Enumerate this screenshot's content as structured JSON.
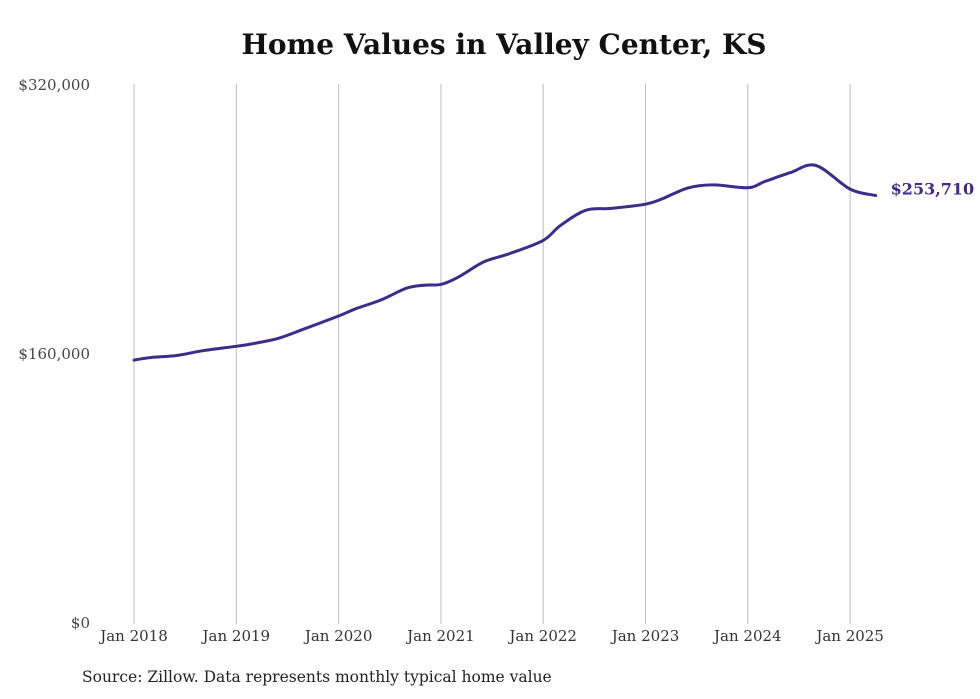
{
  "chart_data": {
    "type": "line",
    "title": "Home Values in Valley Center, KS",
    "xlabel": "",
    "ylabel": "",
    "ylim": [
      0,
      320000
    ],
    "yticks": [
      {
        "value": 0,
        "label": "$0"
      },
      {
        "value": 160000,
        "label": "$160,000"
      },
      {
        "value": 320000,
        "label": "$320,000"
      }
    ],
    "xticks": [
      {
        "value": "2018-01",
        "label": "Jan 2018"
      },
      {
        "value": "2019-01",
        "label": "Jan 2019"
      },
      {
        "value": "2020-01",
        "label": "Jan 2020"
      },
      {
        "value": "2021-01",
        "label": "Jan 2021"
      },
      {
        "value": "2022-01",
        "label": "Jan 2022"
      },
      {
        "value": "2023-01",
        "label": "Jan 2023"
      },
      {
        "value": "2024-01",
        "label": "Jan 2024"
      },
      {
        "value": "2025-01",
        "label": "Jan 2025"
      }
    ],
    "grid": "vertical",
    "line_color": "#3b2e8a",
    "series": [
      {
        "x": [
          "2018-01",
          "2018-03",
          "2018-06",
          "2018-09",
          "2019-01",
          "2019-03",
          "2019-06",
          "2019-09",
          "2020-01",
          "2020-03",
          "2020-06",
          "2020-09",
          "2020-11",
          "2021-01",
          "2021-03",
          "2021-06",
          "2021-09",
          "2022-01",
          "2022-03",
          "2022-06",
          "2022-09",
          "2023-01",
          "2023-03",
          "2023-06",
          "2023-09",
          "2024-01",
          "2024-03",
          "2024-06",
          "2024-09",
          "2025-01",
          "2025-04"
        ],
        "values": [
          155800,
          157300,
          158500,
          161300,
          164000,
          165600,
          168800,
          174400,
          182000,
          186300,
          191600,
          198600,
          200300,
          200800,
          205000,
          214100,
          219000,
          227000,
          235800,
          244900,
          246000,
          248500,
          251800,
          258200,
          260000,
          258300,
          262000,
          267300,
          271500,
          257500,
          253710
        ]
      }
    ],
    "end_label": "$253,710"
  },
  "footer": {
    "source": "Source: Zillow. Data represents monthly typical home value"
  }
}
